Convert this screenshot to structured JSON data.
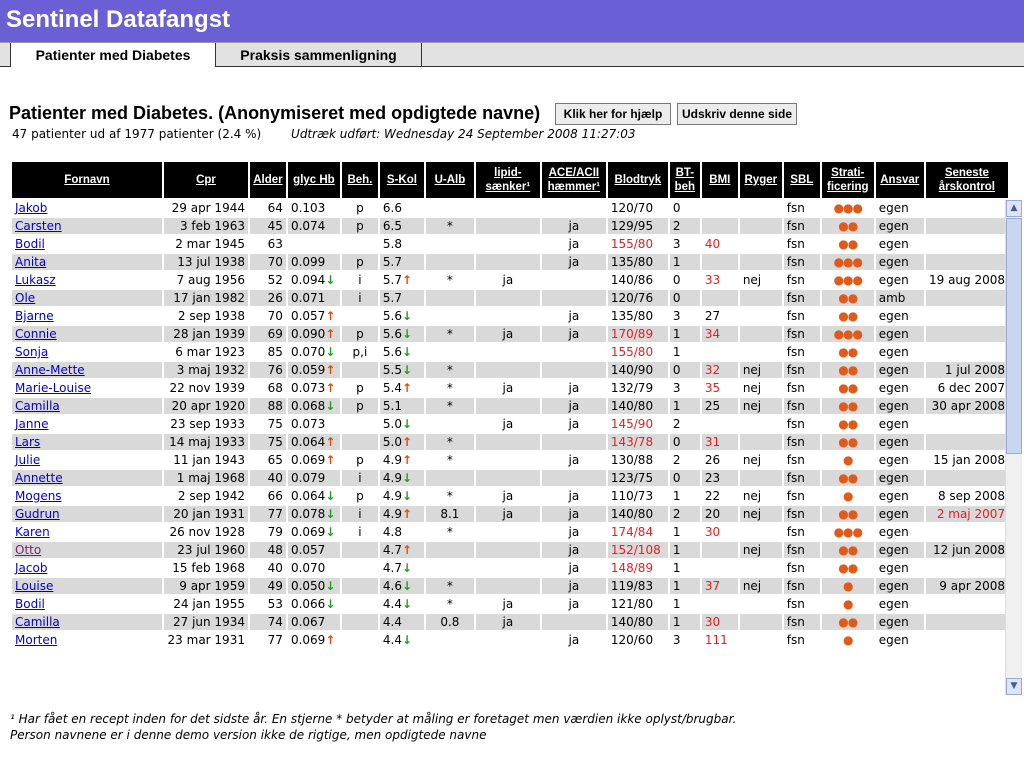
{
  "app": {
    "title": "Sentinel Datafangst"
  },
  "tabs": [
    {
      "label": "Patienter med Diabetes",
      "active": true
    },
    {
      "label": "Praksis sammenligning",
      "active": false
    }
  ],
  "page": {
    "title": "Patienter med Diabetes. (Anonymiseret med opdigtede navne)",
    "help_button": "Klik her for hjælp",
    "print_button": "Udskriv denne side",
    "summary": "47 patienter ud af 1977 patienter (2.4 %)",
    "extract": "Udtræk udført: Wednesday 24 September 2008 11:27:03"
  },
  "table": {
    "headers": [
      {
        "line1": "Fornavn",
        "line2": ""
      },
      {
        "line1": "Cpr",
        "line2": ""
      },
      {
        "line1": "Alder",
        "line2": ""
      },
      {
        "line1": "glyc Hb",
        "line2": ""
      },
      {
        "line1": "Beh.",
        "line2": ""
      },
      {
        "line1": "S-Kol",
        "line2": ""
      },
      {
        "line1": "U-Alb",
        "line2": ""
      },
      {
        "line1": "lipid-",
        "line2": "sænker¹"
      },
      {
        "line1": "ACE/ACII",
        "line2": "hæmmer¹"
      },
      {
        "line1": "Blodtryk",
        "line2": ""
      },
      {
        "line1": "BT-",
        "line2": "beh"
      },
      {
        "line1": "BMI",
        "line2": ""
      },
      {
        "line1": "Ryger",
        "line2": ""
      },
      {
        "line1": "SBL",
        "line2": ""
      },
      {
        "line1": "Strati-",
        "line2": "ficering"
      },
      {
        "line1": "Ansvar",
        "line2": ""
      },
      {
        "line1": "Seneste",
        "line2": "årskontrol"
      }
    ],
    "rows": [
      [
        "Jakob",
        "29 apr 1944",
        "64",
        "0.103",
        "",
        "p",
        "6.6",
        "",
        "",
        "",
        "",
        "120/70",
        "",
        "0",
        "",
        "",
        "",
        "fsn",
        "●●●",
        "egen",
        "",
        ""
      ],
      [
        "Carsten",
        "3 feb 1963",
        "45",
        "0.074",
        "",
        "p",
        "6.5",
        "",
        "*",
        "",
        "ja",
        "129/95",
        "",
        "2",
        "",
        "",
        "",
        "fsn",
        "●●",
        "egen",
        "",
        ""
      ],
      [
        "Bodil",
        "2 mar 1945",
        "63",
        "",
        "",
        "",
        "5.8",
        "",
        "",
        "",
        "ja",
        "155/80",
        "red",
        "3",
        "40",
        "red",
        "",
        "fsn",
        "●●",
        "egen",
        "",
        ""
      ],
      [
        "Anita",
        "13 jul 1938",
        "70",
        "0.099",
        "",
        "p",
        "5.7",
        "",
        "",
        "",
        "ja",
        "135/80",
        "",
        "1",
        "",
        "",
        "",
        "fsn",
        "●●●",
        "egen",
        "",
        ""
      ],
      [
        "Lukasz",
        "7 aug 1956",
        "52",
        "0.094",
        "dn",
        "i",
        "5.7",
        "up",
        "*",
        "ja",
        "",
        "140/86",
        "",
        "0",
        "33",
        "red",
        "nej",
        "fsn",
        "●●●",
        "egen",
        "19 aug 2008",
        ""
      ],
      [
        "Ole",
        "17 jan 1982",
        "26",
        "0.071",
        "",
        "i",
        "5.7",
        "",
        "",
        "",
        "",
        "120/76",
        "",
        "0",
        "",
        "",
        "",
        "fsn",
        "●●",
        "amb",
        "",
        ""
      ],
      [
        "Bjarne",
        "2 sep 1938",
        "70",
        "0.057",
        "up",
        "",
        "5.6",
        "dn",
        "",
        "",
        "ja",
        "135/80",
        "",
        "3",
        "27",
        "",
        "",
        "fsn",
        "●●",
        "egen",
        "",
        ""
      ],
      [
        "Connie",
        "28 jan 1939",
        "69",
        "0.090",
        "up",
        "p",
        "5.6",
        "dn",
        "*",
        "ja",
        "ja",
        "170/89",
        "red",
        "1",
        "34",
        "red",
        "",
        "fsn",
        "●●●",
        "egen",
        "",
        ""
      ],
      [
        "Sonja",
        "6 mar 1923",
        "85",
        "0.070",
        "dn",
        "p,i",
        "5.6",
        "dn",
        "",
        "",
        "",
        "155/80",
        "red",
        "1",
        "",
        "",
        "",
        "fsn",
        "●●",
        "egen",
        "",
        ""
      ],
      [
        "Anne-Mette",
        "3 maj 1932",
        "76",
        "0.059",
        "up",
        "",
        "5.5",
        "dn",
        "*",
        "",
        "",
        "140/90",
        "",
        "0",
        "32",
        "red",
        "nej",
        "fsn",
        "●●",
        "egen",
        "1 jul 2008",
        ""
      ],
      [
        "Marie-Louise",
        "22 nov 1939",
        "68",
        "0.073",
        "up",
        "p",
        "5.4",
        "up",
        "*",
        "ja",
        "ja",
        "132/79",
        "",
        "3",
        "35",
        "red",
        "nej",
        "fsn",
        "●●",
        "egen",
        "6 dec 2007",
        ""
      ],
      [
        "Camilla",
        "20 apr 1920",
        "88",
        "0.068",
        "dn",
        "p",
        "5.1",
        "",
        "*",
        "",
        "ja",
        "140/80",
        "",
        "1",
        "25",
        "",
        "nej",
        "fsn",
        "●●",
        "egen",
        "30 apr 2008",
        ""
      ],
      [
        "Janne",
        "23 sep 1933",
        "75",
        "0.073",
        "",
        "",
        "5.0",
        "dn",
        "",
        "ja",
        "ja",
        "145/90",
        "red",
        "2",
        "",
        "",
        "",
        "fsn",
        "●●",
        "egen",
        "",
        ""
      ],
      [
        "Lars",
        "14 maj 1933",
        "75",
        "0.064",
        "up",
        "",
        "5.0",
        "up",
        "*",
        "",
        "",
        "143/78",
        "red",
        "0",
        "31",
        "red",
        "",
        "fsn",
        "●●",
        "egen",
        "",
        ""
      ],
      [
        "Julie",
        "11 jan 1943",
        "65",
        "0.069",
        "up",
        "p",
        "4.9",
        "up",
        "*",
        "",
        "ja",
        "130/88",
        "",
        "2",
        "26",
        "",
        "nej",
        "fsn",
        "●",
        "egen",
        "15 jan 2008",
        ""
      ],
      [
        "Annette",
        "1 maj 1968",
        "40",
        "0.079",
        "",
        "i",
        "4.9",
        "dn",
        "",
        "",
        "",
        "123/75",
        "",
        "0",
        "23",
        "",
        "",
        "fsn",
        "●●",
        "egen",
        "",
        ""
      ],
      [
        "Mogens",
        "2 sep 1942",
        "66",
        "0.064",
        "dn",
        "p",
        "4.9",
        "dn",
        "*",
        "ja",
        "ja",
        "110/73",
        "",
        "1",
        "22",
        "",
        "nej",
        "fsn",
        "●",
        "egen",
        "8 sep 2008",
        ""
      ],
      [
        "Gudrun",
        "20 jan 1931",
        "77",
        "0.078",
        "dn",
        "i",
        "4.9",
        "up",
        "8.1",
        "ja",
        "ja",
        "140/80",
        "",
        "2",
        "20",
        "",
        "nej",
        "fsn",
        "●●",
        "egen",
        "2 maj 2007",
        "red"
      ],
      [
        "Karen",
        "26 nov 1928",
        "79",
        "0.069",
        "dn",
        "i",
        "4.8",
        "",
        "*",
        "",
        "ja",
        "174/84",
        "red",
        "1",
        "30",
        "red",
        "",
        "fsn",
        "●●●",
        "egen",
        "",
        ""
      ],
      [
        "Otto",
        "23 jul 1960",
        "48",
        "0.057",
        "",
        "",
        "4.7",
        "up",
        "",
        "",
        "ja",
        "152/108",
        "red",
        "1",
        "",
        "",
        "nej",
        "fsn",
        "●●",
        "egen",
        "12 jun 2008",
        ""
      ],
      [
        "Jacob",
        "15 feb 1968",
        "40",
        "0.070",
        "",
        "",
        "4.7",
        "dn",
        "",
        "",
        "ja",
        "148/89",
        "red",
        "1",
        "",
        "",
        "",
        "fsn",
        "●●",
        "egen",
        "",
        ""
      ],
      [
        "Louise",
        "9 apr 1959",
        "49",
        "0.050",
        "dn",
        "",
        "4.6",
        "dn",
        "*",
        "",
        "ja",
        "119/83",
        "",
        "1",
        "37",
        "red",
        "nej",
        "fsn",
        "●",
        "egen",
        "9 apr 2008",
        ""
      ],
      [
        "Bodil",
        "24 jan 1955",
        "53",
        "0.066",
        "dn",
        "",
        "4.4",
        "dn",
        "*",
        "ja",
        "ja",
        "121/80",
        "",
        "1",
        "",
        "",
        "",
        "fsn",
        "●",
        "egen",
        "",
        ""
      ],
      [
        "Camilla",
        "27 jun 1934",
        "74",
        "0.067",
        "",
        "",
        "4.4",
        "",
        "0.8",
        "ja",
        "",
        "140/80",
        "",
        "1",
        "30",
        "red",
        "",
        "fsn",
        "●●",
        "egen",
        "",
        ""
      ],
      [
        "Morten",
        "23 mar 1931",
        "77",
        "0.069",
        "up",
        "",
        "4.4",
        "dn",
        "",
        "",
        "ja",
        "120/60",
        "",
        "3",
        "111",
        "red",
        "",
        "fsn",
        "●",
        "egen",
        "",
        ""
      ]
    ],
    "visited_row": 19
  },
  "footnote": {
    "line1": "¹ Har fået en recept inden for det sidste år.    En stjerne * betyder at måling er foretaget men værdien ikke oplyst/brugbar.",
    "line2": "Person navnene er i denne demo version ikke de rigtige, men opdigtede navne"
  },
  "colors": {
    "header_bg": "#6b5fd6",
    "red_value": "#e02020",
    "dot": "#e05a1a",
    "arrow_up": "#e05000",
    "arrow_down": "#20a020"
  },
  "icons": {
    "arrow_up": "arrow-up-icon",
    "arrow_down": "arrow-down-icon",
    "risk_dot": "risk-dot-icon"
  }
}
